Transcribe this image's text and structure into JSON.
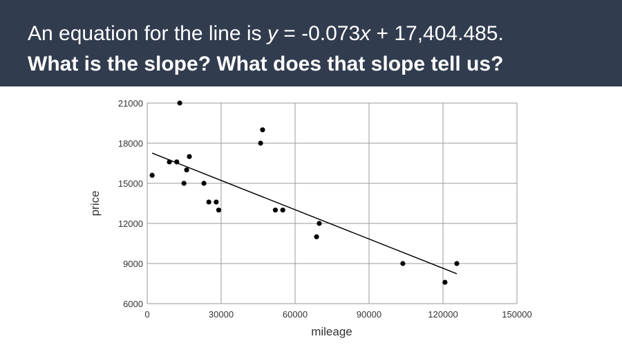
{
  "chart_data": {
    "type": "scatter",
    "title_parts": [
      "An equation for the line is ",
      "y",
      " = -0.073",
      "x",
      " + 17,404.485."
    ],
    "subtitle": "What is the slope? What does that slope tell us?",
    "x_label": "mileage",
    "y_label": "price",
    "xlim": [
      0,
      150000
    ],
    "xticks": [
      0,
      30000,
      60000,
      90000,
      120000,
      150000
    ],
    "ylim": [
      6000,
      21000
    ],
    "yticks": [
      6000,
      9000,
      12000,
      15000,
      18000,
      21000
    ],
    "grid": true,
    "color": "#000000",
    "x": [
      2000,
      13200,
      9000,
      12000,
      17100,
      16000,
      14900,
      23000,
      25000,
      28000,
      29000,
      46800,
      46000,
      52000,
      55000,
      69800,
      68700,
      103700,
      120800,
      125600
    ],
    "values": [
      15600,
      21000,
      16600,
      16600,
      17000,
      16000,
      15000,
      15000,
      13600,
      13600,
      13000,
      19000,
      18000,
      13000,
      13000,
      12000,
      11000,
      9000,
      7600,
      9000
    ],
    "trendline": {
      "x": [
        2000,
        125600
      ],
      "values": [
        17258,
        8236
      ]
    }
  }
}
